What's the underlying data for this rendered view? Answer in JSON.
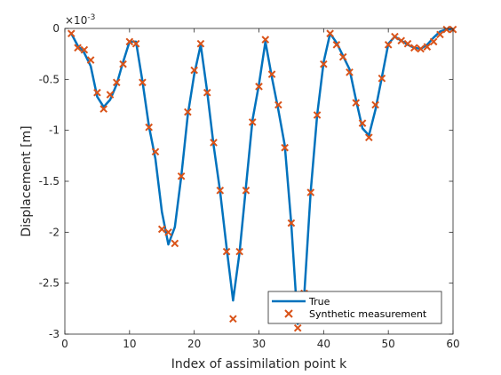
{
  "chart_data": {
    "type": "line",
    "xlabel": "Index of assimilation point k",
    "ylabel": "Displacement [m]",
    "exponent_label": "×10",
    "exponent_power": "-3",
    "xlim": [
      0,
      60
    ],
    "ylim": [
      -3,
      0
    ],
    "x_ticks": [
      0,
      10,
      20,
      30,
      40,
      50,
      60
    ],
    "x_tick_labels": [
      "0",
      "10",
      "20",
      "30",
      "40",
      "50",
      "60"
    ],
    "y_ticks": [
      0,
      -0.5,
      -1,
      -1.5,
      -2,
      -2.5,
      -3
    ],
    "y_tick_labels": [
      "0",
      "-0.5",
      "-1",
      "-1.5",
      "-2",
      "-2.5",
      "-3"
    ],
    "grid": false,
    "legend_position": "bottom-right",
    "colors": {
      "true": "#0072BD",
      "measurement": "#D95319",
      "axis": "#262626"
    },
    "series": [
      {
        "name": "True",
        "style": "line",
        "x": [
          1,
          2,
          3,
          4,
          5,
          6,
          7,
          8,
          9,
          10,
          11,
          12,
          13,
          14,
          15,
          16,
          17,
          18,
          19,
          20,
          21,
          22,
          23,
          24,
          25,
          26,
          27,
          28,
          29,
          30,
          31,
          32,
          33,
          34,
          35,
          36,
          37,
          38,
          39,
          40,
          41,
          42,
          43,
          44,
          45,
          46,
          47,
          48,
          49,
          50,
          51,
          52,
          53,
          54,
          55,
          56,
          57,
          58,
          59,
          60
        ],
        "y": [
          -0.05,
          -0.17,
          -0.24,
          -0.37,
          -0.67,
          -0.77,
          -0.7,
          -0.55,
          -0.33,
          -0.13,
          -0.13,
          -0.52,
          -0.96,
          -1.28,
          -1.8,
          -2.12,
          -1.95,
          -1.45,
          -0.85,
          -0.45,
          -0.16,
          -0.62,
          -1.15,
          -1.6,
          -2.15,
          -2.67,
          -2.2,
          -1.55,
          -0.9,
          -0.55,
          -0.13,
          -0.48,
          -0.8,
          -1.15,
          -1.92,
          -2.9,
          -2.62,
          -1.6,
          -0.85,
          -0.33,
          -0.05,
          -0.14,
          -0.27,
          -0.4,
          -0.7,
          -0.98,
          -1.05,
          -0.8,
          -0.48,
          -0.15,
          -0.08,
          -0.12,
          -0.16,
          -0.19,
          -0.2,
          -0.16,
          -0.09,
          -0.03,
          -0.01,
          -0.01
        ]
      },
      {
        "name": "Synthetic measurement",
        "style": "x-marker",
        "x": [
          1,
          2,
          3,
          4,
          5,
          6,
          7,
          8,
          9,
          10,
          11,
          12,
          13,
          14,
          15,
          16,
          17,
          18,
          19,
          20,
          21,
          22,
          23,
          24,
          25,
          26,
          27,
          28,
          29,
          30,
          31,
          32,
          33,
          34,
          35,
          36,
          37,
          38,
          39,
          40,
          41,
          42,
          43,
          44,
          45,
          46,
          47,
          48,
          49,
          50,
          51,
          52,
          53,
          54,
          55,
          56,
          57,
          58,
          59,
          60
        ],
        "y": [
          -0.05,
          -0.19,
          -0.21,
          -0.31,
          -0.63,
          -0.79,
          -0.65,
          -0.53,
          -0.35,
          -0.13,
          -0.15,
          -0.53,
          -0.97,
          -1.21,
          -1.97,
          -2.0,
          -2.11,
          -1.45,
          -0.82,
          -0.41,
          -0.15,
          -0.63,
          -1.12,
          -1.59,
          -2.19,
          -2.85,
          -2.19,
          -1.59,
          -0.92,
          -0.57,
          -0.11,
          -0.45,
          -0.75,
          -1.17,
          -1.91,
          -2.94,
          -2.6,
          -1.61,
          -0.85,
          -0.35,
          -0.05,
          -0.16,
          -0.28,
          -0.43,
          -0.73,
          -0.93,
          -1.07,
          -0.75,
          -0.49,
          -0.16,
          -0.08,
          -0.12,
          -0.15,
          -0.19,
          -0.2,
          -0.18,
          -0.13,
          -0.06,
          -0.01,
          -0.01
        ]
      }
    ]
  }
}
